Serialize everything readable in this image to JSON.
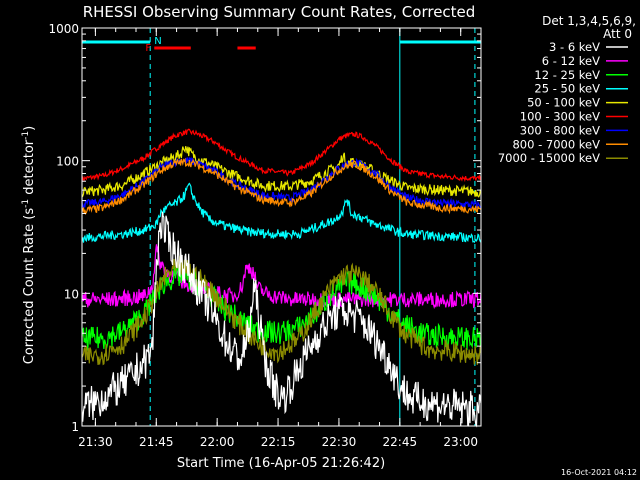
{
  "chart_data": {
    "type": "line",
    "title": "RHESSI Observing Summary Count Rates, Corrected",
    "xlabel": "Start Time (16-Apr-05 21:26:42)",
    "ylabel_main": "Corrected Count Rate (s",
    "ylabel_sup1": "-1",
    "ylabel_mid": " detector",
    "ylabel_sup2": "-1",
    "ylabel_end": ")",
    "y_scale": "log",
    "ylim": [
      1,
      1000
    ],
    "y_ticks": [
      {
        "value": 1,
        "label": "1"
      },
      {
        "value": 10,
        "label": "10"
      },
      {
        "value": 100,
        "label": "100"
      },
      {
        "value": 1000,
        "label": "1000"
      }
    ],
    "xlim_min": [
      1286.7,
      1385
    ],
    "x_ticks": [
      {
        "value": 1290,
        "label": "21:30"
      },
      {
        "value": 1305,
        "label": "21:45"
      },
      {
        "value": 1320,
        "label": "22:00"
      },
      {
        "value": 1335,
        "label": "22:15"
      },
      {
        "value": 1350,
        "label": "22:30"
      },
      {
        "value": 1365,
        "label": "22:45"
      },
      {
        "value": 1380,
        "label": "23:00"
      }
    ],
    "legend": {
      "placement": "right",
      "header1": "Det 1,3,4,5,6,9,",
      "header2": "Att 0",
      "entries": [
        {
          "label": "3 - 6 keV",
          "color": "#ffffff"
        },
        {
          "label": "6 - 12 keV",
          "color": "#ff00ff"
        },
        {
          "label": "12 - 25 keV",
          "color": "#00ff00"
        },
        {
          "label": "25 - 50 keV",
          "color": "#00ffff"
        },
        {
          "label": "50 - 100 keV",
          "color": "#e8e800"
        },
        {
          "label": "100 - 300 keV",
          "color": "#ff0000"
        },
        {
          "label": "300 - 800 keV",
          "color": "#0000ff"
        },
        {
          "label": "800 - 7000 keV",
          "color": "#ff8c00"
        },
        {
          "label": "7000 - 15000 keV",
          "color": "#8b8b00"
        }
      ]
    },
    "series": [
      {
        "color": "#ff0000",
        "x": [
          1286.7,
          1292,
          1297,
          1302,
          1306,
          1309,
          1311,
          1313,
          1315,
          1319,
          1324,
          1331,
          1338,
          1343,
          1347,
          1350,
          1352,
          1354,
          1356,
          1359,
          1363,
          1367,
          1375,
          1385
        ],
        "y": [
          73,
          77,
          88,
          105,
          130,
          150,
          160,
          165,
          160,
          140,
          110,
          85,
          80,
          95,
          120,
          145,
          155,
          158,
          150,
          130,
          100,
          82,
          76,
          73
        ]
      },
      {
        "color": "#e8e800",
        "x": [
          1286.7,
          1292,
          1297,
          1302,
          1306,
          1309,
          1311,
          1312,
          1313,
          1314,
          1315,
          1319,
          1324,
          1331,
          1338,
          1343,
          1347,
          1350,
          1351,
          1352,
          1353,
          1354,
          1356,
          1359,
          1363,
          1367,
          1375,
          1385
        ],
        "y": [
          58,
          60,
          66,
          80,
          95,
          105,
          112,
          128,
          118,
          110,
          105,
          92,
          78,
          65,
          64,
          70,
          82,
          92,
          110,
          95,
          98,
          96,
          92,
          82,
          70,
          62,
          60,
          58
        ]
      },
      {
        "color": "#0000ff",
        "x": [
          1286.7,
          1292,
          1297,
          1302,
          1306,
          1309,
          1311,
          1313,
          1315,
          1319,
          1324,
          1331,
          1338,
          1343,
          1347,
          1350,
          1352,
          1354,
          1356,
          1359,
          1363,
          1367,
          1375,
          1385
        ],
        "y": [
          47,
          49,
          56,
          70,
          88,
          97,
          100,
          100,
          96,
          85,
          68,
          55,
          52,
          60,
          75,
          88,
          95,
          97,
          92,
          80,
          62,
          52,
          48,
          46
        ]
      },
      {
        "color": "#ff8c00",
        "x": [
          1286.7,
          1292,
          1297,
          1302,
          1306,
          1309,
          1311,
          1313,
          1315,
          1319,
          1324,
          1331,
          1338,
          1343,
          1347,
          1350,
          1352,
          1354,
          1356,
          1359,
          1363,
          1367,
          1375,
          1385
        ],
        "y": [
          42,
          44,
          52,
          66,
          84,
          94,
          97,
          97,
          93,
          82,
          65,
          51,
          48,
          56,
          72,
          85,
          92,
          94,
          88,
          76,
          58,
          48,
          44,
          43
        ]
      },
      {
        "color": "#00ffff",
        "x": [
          1286.7,
          1292,
          1297,
          1302,
          1305,
          1306,
          1308,
          1310,
          1312,
          1313,
          1314,
          1316,
          1318,
          1322,
          1328,
          1334,
          1340,
          1345,
          1349,
          1351,
          1352,
          1353,
          1355,
          1358,
          1362,
          1366,
          1375,
          1385
        ],
        "y": [
          26,
          27,
          28,
          30,
          33,
          40,
          45,
          48,
          55,
          65,
          55,
          42,
          36,
          32,
          29,
          28,
          28,
          32,
          36,
          42,
          52,
          40,
          38,
          34,
          31,
          28,
          27,
          26
        ]
      },
      {
        "color": "#ff00ff",
        "x": [
          1286.7,
          1295,
          1302,
          1304,
          1305,
          1306,
          1308,
          1310,
          1312,
          1314,
          1316,
          1318,
          1320,
          1322,
          1324,
          1326,
          1327,
          1328,
          1329,
          1330,
          1332,
          1334,
          1338,
          1345,
          1352,
          1360,
          1368,
          1375,
          1385
        ],
        "y": [
          9,
          9,
          9.5,
          11,
          22,
          17,
          14,
          13,
          12,
          11.5,
          11,
          10.5,
          10,
          9.7,
          9.5,
          11,
          15,
          16,
          14,
          11,
          10,
          9.5,
          9,
          9,
          9,
          9,
          9,
          9,
          9
        ]
      },
      {
        "color": "#00ff00",
        "x": [
          1286.7,
          1292,
          1297,
          1302,
          1305,
          1307,
          1309,
          1311,
          1313,
          1315,
          1318,
          1321,
          1325,
          1330,
          1335,
          1340,
          1344,
          1347,
          1350,
          1352,
          1354,
          1356,
          1359,
          1362,
          1366,
          1372,
          1385
        ],
        "y": [
          4.5,
          4.6,
          5.2,
          7,
          10,
          12,
          13,
          13.5,
          13,
          12,
          10,
          8,
          6.5,
          5.2,
          5,
          5.5,
          7,
          9,
          11,
          12,
          12,
          11,
          9.5,
          7.5,
          5.8,
          4.8,
          4.5
        ]
      },
      {
        "color": "#8b8b00",
        "x": [
          1286.7,
          1292,
          1297,
          1302,
          1305,
          1307,
          1309,
          1311,
          1313,
          1315,
          1318,
          1321,
          1325,
          1330,
          1335,
          1340,
          1344,
          1347,
          1350,
          1352,
          1354,
          1356,
          1359,
          1362,
          1366,
          1372,
          1385
        ],
        "y": [
          3.3,
          3.5,
          4.2,
          6.5,
          10,
          13,
          15,
          15.5,
          15,
          13.5,
          11,
          8.5,
          6,
          4.2,
          3.6,
          4.5,
          7,
          10,
          13,
          14,
          14,
          13,
          10.5,
          7.5,
          5,
          3.8,
          3.4
        ]
      },
      {
        "color": "#ffffff",
        "x": [
          1286.7,
          1290,
          1294,
          1298,
          1302,
          1304,
          1305,
          1306,
          1307,
          1308,
          1310,
          1312,
          1314,
          1316,
          1318,
          1320,
          1322,
          1324,
          1326,
          1328,
          1329,
          1330,
          1331,
          1332,
          1334,
          1336,
          1338,
          1342,
          1345,
          1347,
          1349,
          1351,
          1353,
          1355,
          1357,
          1360,
          1363,
          1365,
          1368,
          1372,
          1378,
          1385
        ],
        "y": [
          1.4,
          1.5,
          1.8,
          2.2,
          3,
          3.8,
          15,
          35,
          30,
          25,
          20,
          16,
          13,
          10,
          8,
          6,
          4.5,
          3.6,
          3.2,
          5.5,
          11,
          8,
          4.5,
          3,
          2,
          1.6,
          2,
          3.5,
          5,
          6,
          7,
          7.5,
          7,
          6.5,
          5.5,
          4,
          2.8,
          2,
          1.6,
          1.5,
          1.4,
          1.3
        ]
      }
    ],
    "annotations": {
      "night_label": "N",
      "flare_label": "F"
    },
    "timestamp": "16-Oct-2021 04:12"
  }
}
